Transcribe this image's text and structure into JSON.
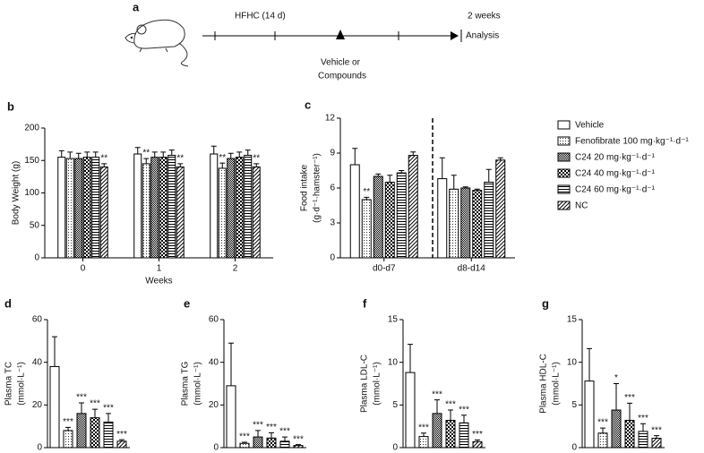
{
  "diagram": {
    "label": "a",
    "start_label": "HFHC (14 d)",
    "end_label": "2 weeks",
    "analysis": "Analysis",
    "treatment": [
      "Vehicle or",
      "Compounds"
    ]
  },
  "chart_data": [
    {
      "type": "grouped-bar",
      "label": "b",
      "ylabel": [
        "Body Weight (g)"
      ],
      "xlabel": "Weeks",
      "categories": [
        "0",
        "1",
        "2"
      ],
      "ylim": [
        0,
        200
      ],
      "yticks": [
        0,
        50,
        100,
        150,
        200
      ],
      "series": [
        {
          "pattern": "none",
          "values": [
            155,
            160,
            160
          ],
          "errors": [
            10,
            10,
            12
          ],
          "annotations": [
            null,
            null,
            null
          ]
        },
        {
          "pattern": "dots",
          "values": [
            153,
            145,
            138
          ],
          "errors": [
            10,
            8,
            8
          ],
          "annotations": [
            null,
            "**",
            "**"
          ]
        },
        {
          "pattern": "crosshatch",
          "values": [
            153,
            155,
            153
          ],
          "errors": [
            8,
            8,
            8
          ],
          "annotations": [
            null,
            null,
            null
          ]
        },
        {
          "pattern": "checker",
          "values": [
            155,
            155,
            155
          ],
          "errors": [
            8,
            8,
            8
          ],
          "annotations": [
            null,
            null,
            null
          ]
        },
        {
          "pattern": "hlines",
          "values": [
            155,
            158,
            158
          ],
          "errors": [
            8,
            8,
            8
          ],
          "annotations": [
            null,
            null,
            null
          ]
        },
        {
          "pattern": "diagonal",
          "values": [
            140,
            140,
            140
          ],
          "errors": [
            5,
            5,
            5
          ],
          "annotations": [
            "**",
            "**",
            "**"
          ]
        }
      ]
    },
    {
      "type": "grouped-bar",
      "label": "c",
      "ylabel": [
        "Food intake",
        "(g·d⁻¹·hamster⁻¹)"
      ],
      "categories": [
        "d0-d7",
        "d8-d14"
      ],
      "ylim": [
        0,
        12
      ],
      "yticks": [
        0,
        3,
        6,
        9,
        12
      ],
      "legend": "right",
      "series": [
        {
          "name": "Vehicle",
          "pattern": "none",
          "values": [
            8.0,
            6.8
          ],
          "errors": [
            1.4,
            1.8
          ],
          "annotations": [
            null,
            null
          ]
        },
        {
          "name": "Fenofibrate 100 mg·kg⁻¹·d⁻¹",
          "pattern": "dots",
          "values": [
            5.0,
            5.9
          ],
          "errors": [
            0.2,
            1.2
          ],
          "annotations": [
            "**",
            null
          ]
        },
        {
          "name": "C24 20 mg·kg⁻¹·d⁻¹",
          "pattern": "crosshatch",
          "values": [
            7.0,
            6.0
          ],
          "errors": [
            0.2,
            0.1
          ],
          "annotations": [
            null,
            null
          ]
        },
        {
          "name": "C24 40 mg·kg⁻¹·d⁻¹",
          "pattern": "checker",
          "values": [
            6.5,
            5.8
          ],
          "errors": [
            0.6,
            0.1
          ],
          "annotations": [
            null,
            null
          ]
        },
        {
          "name": "C24 60 mg·kg⁻¹·d⁻¹",
          "pattern": "hlines",
          "values": [
            7.3,
            6.5
          ],
          "errors": [
            0.2,
            1.1
          ],
          "annotations": [
            null,
            null
          ]
        },
        {
          "name": "NC",
          "pattern": "diagonal",
          "values": [
            8.8,
            8.4
          ],
          "errors": [
            0.3,
            0.2
          ],
          "annotations": [
            null,
            null
          ]
        }
      ]
    },
    {
      "type": "bar",
      "label": "d",
      "ylabel": [
        "Plasma TC",
        "(mmol·L⁻¹)"
      ],
      "ylim": [
        0,
        60
      ],
      "yticks": [
        0,
        20,
        40,
        60
      ],
      "patterns": [
        "none",
        "dots",
        "crosshatch",
        "checker",
        "hlines",
        "diagonal"
      ],
      "values": [
        38,
        8,
        16,
        14,
        12,
        3
      ],
      "errors": [
        14,
        1.5,
        5,
        4,
        4,
        0.7
      ],
      "annotations": [
        null,
        "***",
        "***",
        "***",
        "***",
        "***"
      ]
    },
    {
      "type": "bar",
      "label": "e",
      "ylabel": [
        "Plasma TG",
        "(mmol·L⁻¹)"
      ],
      "ylim": [
        0,
        60
      ],
      "yticks": [
        0,
        20,
        40,
        60
      ],
      "patterns": [
        "none",
        "dots",
        "crosshatch",
        "checker",
        "hlines",
        "diagonal"
      ],
      "values": [
        29,
        2,
        5,
        4.5,
        3,
        1
      ],
      "errors": [
        20,
        0.5,
        3,
        2.5,
        2,
        0.4
      ],
      "annotations": [
        null,
        "***",
        "***",
        "***",
        "***",
        "***"
      ]
    },
    {
      "type": "bar",
      "label": "f",
      "ylabel": [
        "Plasma LDL-C",
        "(mmol·L⁻¹)"
      ],
      "ylim": [
        0,
        15
      ],
      "yticks": [
        0,
        5,
        10,
        15
      ],
      "patterns": [
        "none",
        "dots",
        "crosshatch",
        "checker",
        "hlines",
        "diagonal"
      ],
      "values": [
        8.8,
        1.3,
        4.0,
        3.2,
        2.9,
        0.7
      ],
      "errors": [
        3.3,
        0.4,
        1.6,
        1.2,
        0.9,
        0.2
      ],
      "annotations": [
        null,
        "***",
        "***",
        "***",
        "***",
        "***"
      ]
    },
    {
      "type": "bar",
      "label": "g",
      "ylabel": [
        "Plasma HDL-C",
        "(mmol·L⁻¹)"
      ],
      "ylim": [
        0,
        15
      ],
      "yticks": [
        0,
        5,
        10,
        15
      ],
      "patterns": [
        "none",
        "dots",
        "crosshatch",
        "checker",
        "hlines",
        "diagonal"
      ],
      "values": [
        7.8,
        1.7,
        4.4,
        3.2,
        1.9,
        1.1
      ],
      "errors": [
        3.8,
        0.6,
        3.1,
        2.0,
        0.9,
        0.3
      ],
      "annotations": [
        null,
        "***",
        "*",
        "***",
        "***",
        "***"
      ]
    }
  ]
}
